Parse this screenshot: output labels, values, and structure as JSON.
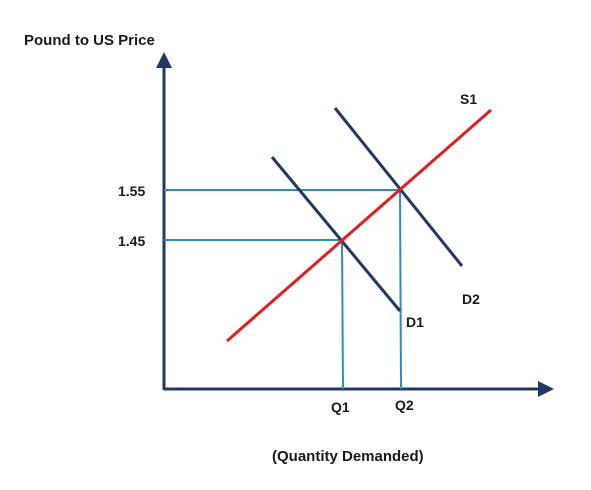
{
  "diagram": {
    "y_axis_label": "Pound to US Price",
    "x_axis_label": "(Quantity Demanded)",
    "y_ticks": [
      "1.55",
      "1.45"
    ],
    "x_ticks": [
      "Q1",
      "Q2"
    ],
    "curves": {
      "supply": "S1",
      "demand_1": "D1",
      "demand_2": "D2"
    },
    "colors": {
      "axis": "#1f3864",
      "supply": "#e02020",
      "demand": "#1f3864",
      "guide": "#2e8bc0"
    }
  }
}
